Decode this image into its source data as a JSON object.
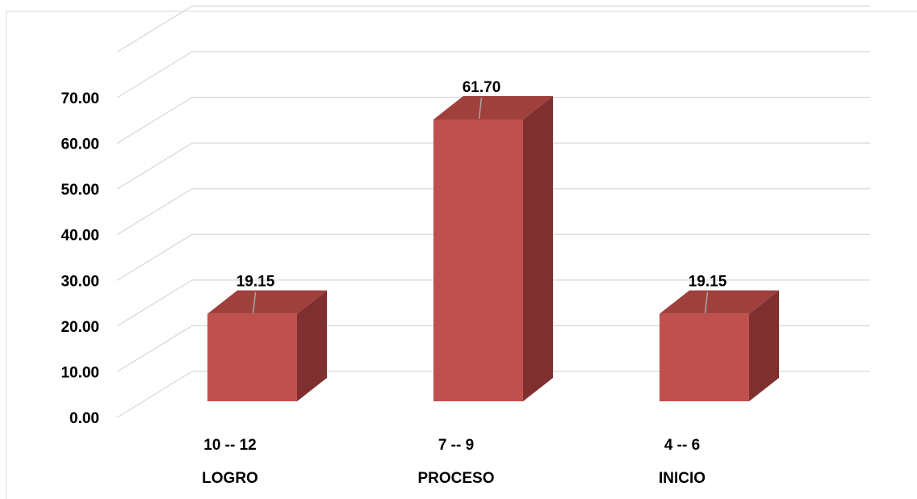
{
  "chart_data": {
    "type": "bar",
    "categories": [
      "10 -- 12",
      "7 -- 9",
      "4 -- 6"
    ],
    "category_labels": [
      "LOGRO",
      "PROCESO",
      "INICIO"
    ],
    "values": [
      19.15,
      61.7,
      19.15
    ],
    "data_labels": [
      "19.15",
      "61.70",
      "19.15"
    ],
    "y_ticks": [
      "0.00",
      "10.00",
      "20.00",
      "30.00",
      "40.00",
      "50.00",
      "60.00",
      "70.00"
    ],
    "ylim": [
      0,
      80
    ],
    "grid": true,
    "three_d": true,
    "colors": {
      "front": "#c0504d",
      "top": "#a0403d",
      "side": "#7f302e",
      "grid": "#d9d9d9"
    }
  }
}
